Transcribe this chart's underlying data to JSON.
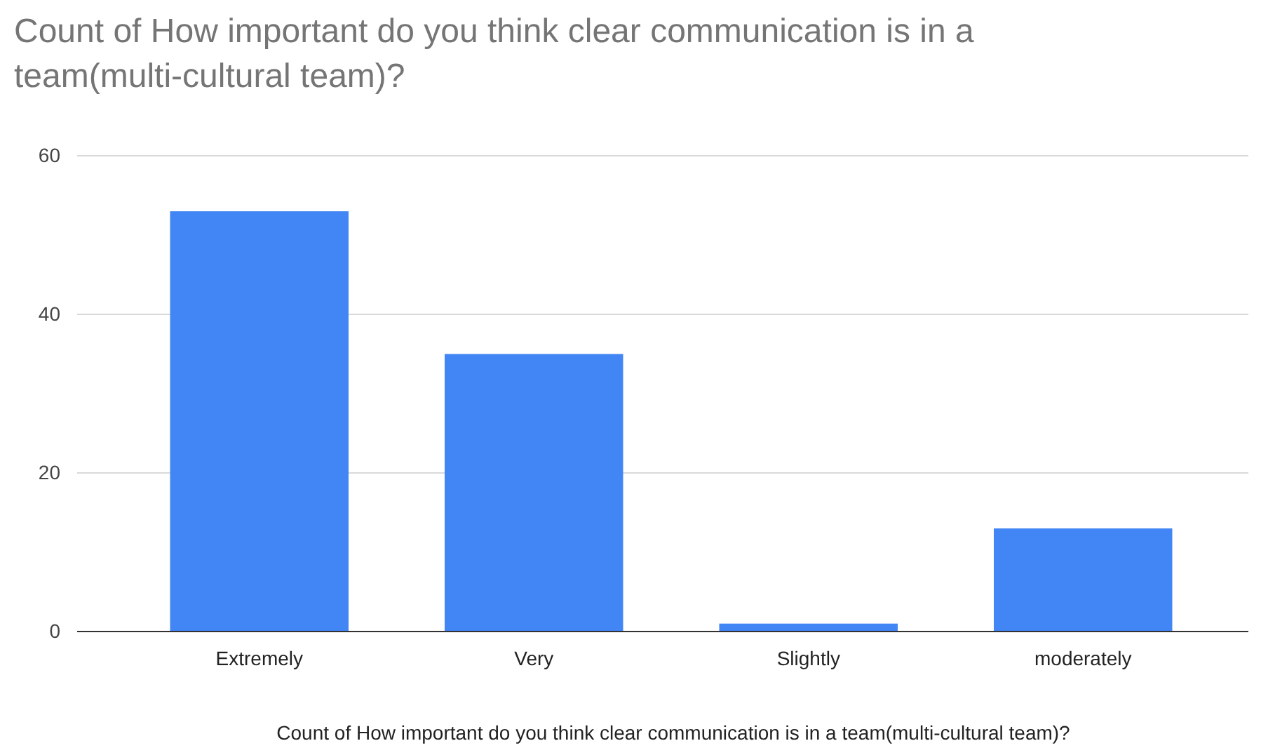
{
  "chart_data": {
    "type": "bar",
    "title": "Count of How important do you think clear communication is in a team(multi-cultural team)?",
    "xlabel": "Count of How important do you think clear communication is in a team(multi-cultural team)?",
    "categories": [
      "Extremely",
      "Very",
      "Slightly",
      "moderately"
    ],
    "values": [
      53,
      35,
      1,
      13
    ],
    "color": "#4285f4",
    "ylim": [
      0,
      60
    ],
    "yticks": [
      0,
      20,
      40,
      60
    ],
    "grid": "y"
  }
}
